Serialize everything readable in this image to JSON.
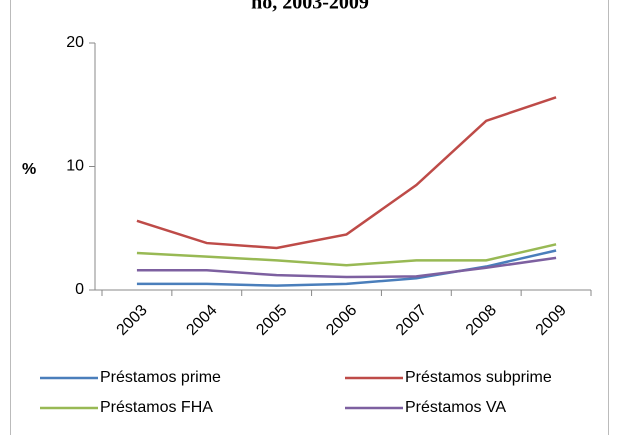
{
  "chart_data": {
    "type": "line",
    "title": "ño, 2003-2009",
    "ylabel": "%",
    "categories": [
      "2003",
      "2004",
      "2005",
      "2006",
      "2007",
      "2008",
      "2009"
    ],
    "series": [
      {
        "name": "Préstamos prime",
        "color": "#4a7ebb",
        "values": [
          0.5,
          0.5,
          0.35,
          0.5,
          0.95,
          1.9,
          3.2
        ]
      },
      {
        "name": "Préstamos subprime",
        "color": "#be4b48",
        "values": [
          5.6,
          3.8,
          3.4,
          4.5,
          8.5,
          13.7,
          15.6
        ]
      },
      {
        "name": "Préstamos FHA",
        "color": "#98b954",
        "values": [
          3.0,
          2.7,
          2.4,
          2.0,
          2.4,
          2.4,
          3.7
        ]
      },
      {
        "name": "Préstamos VA",
        "color": "#7d60a0",
        "values": [
          1.6,
          1.6,
          1.2,
          1.05,
          1.1,
          1.8,
          2.6
        ]
      }
    ],
    "ylim": [
      0,
      20
    ],
    "yticks": [
      0,
      10,
      20
    ],
    "legend": "bottom"
  }
}
